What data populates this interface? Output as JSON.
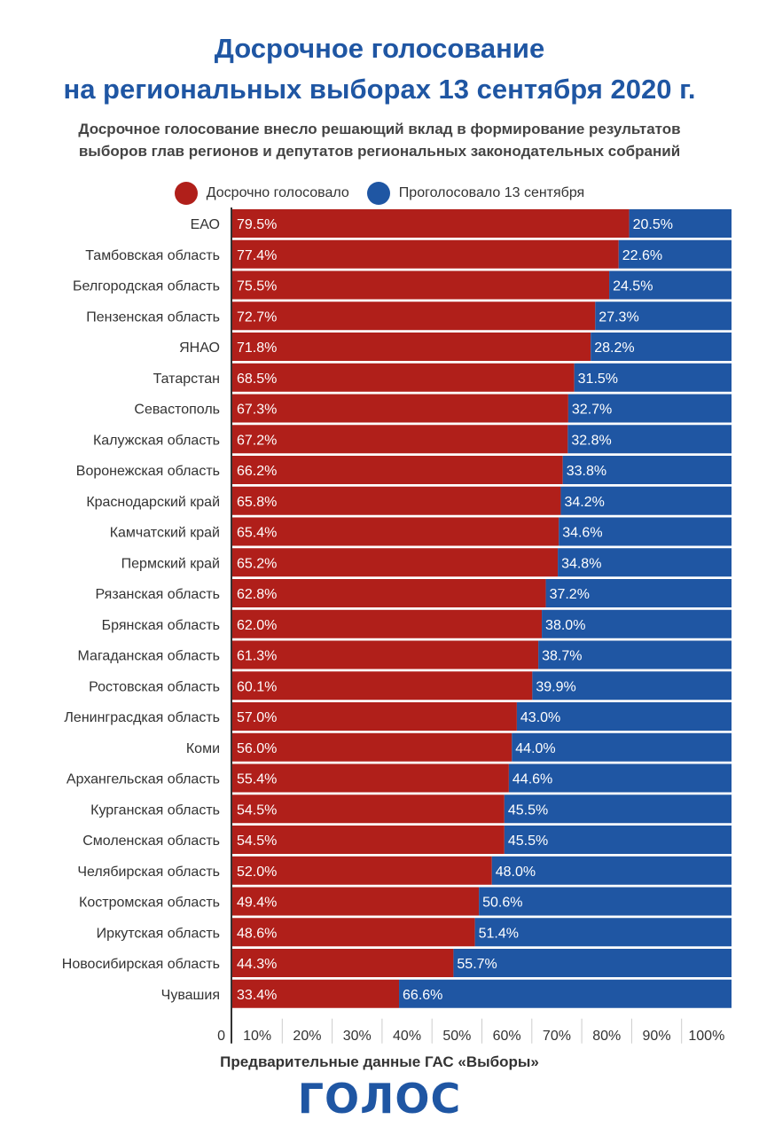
{
  "header": {
    "title_line1": "Досрочное голосование",
    "title_line2": "на региональных выборах 13 сентября 2020 г.",
    "subtitle_line1": "Досрочное голосование внесло решающий вклад в формирование результатов",
    "subtitle_line2": "выборов глав регионов и депутатов региональных законодательных собраний"
  },
  "legend": [
    {
      "label": "Досрочно голосовало",
      "color": "#b01f1a"
    },
    {
      "label": "Проголосовало 13 сентября",
      "color": "#1f56a3"
    }
  ],
  "chart_data": {
    "type": "bar",
    "orientation": "horizontal",
    "stacked": true,
    "categories": [
      "ЕАО",
      "Тамбовская область",
      "Белгородская область",
      "Пензенская область",
      "ЯНАО",
      "Татарстан",
      "Севастополь",
      "Калужская область",
      "Воронежская область",
      "Краснодарский край",
      "Камчатский край",
      "Пермский край",
      "Рязанская область",
      "Брянская область",
      "Магаданская область",
      "Ростовская область",
      "Ленинграсдкая область",
      "Коми",
      "Архангельская область",
      "Курганская область",
      "Смоленская область",
      "Челябирская область",
      "Костромская область",
      "Иркутская область",
      "Новосибирская область",
      "Чувашия"
    ],
    "series": [
      {
        "name": "Досрочно голосовало",
        "color": "#b01f1a",
        "values": [
          79.5,
          77.4,
          75.5,
          72.7,
          71.8,
          68.5,
          67.3,
          67.2,
          66.2,
          65.8,
          65.4,
          65.2,
          62.8,
          62.0,
          61.3,
          60.1,
          57.0,
          56.0,
          55.4,
          54.5,
          54.5,
          52.0,
          49.4,
          48.6,
          44.3,
          33.4
        ],
        "labels": [
          "79.5%",
          "77.4%",
          "75.5%",
          "72.7%",
          "71.8%",
          "68.5%",
          "67.3%",
          "67.2%",
          "66.2%",
          "65.8%",
          "65.4%",
          "65.2%",
          "62.8%",
          "62.0%",
          "61.3%",
          "60.1%",
          "57.0%",
          "56.0%",
          "55.4%",
          "54.5%",
          "54.5%",
          "52.0%",
          "49.4%",
          "48.6%",
          "44.3%",
          "33.4%"
        ]
      },
      {
        "name": "Проголосовало 13 сентября",
        "color": "#1f56a3",
        "values": [
          20.5,
          22.6,
          24.5,
          27.3,
          28.2,
          31.5,
          32.7,
          32.8,
          33.8,
          34.2,
          34.6,
          34.8,
          37.2,
          38.0,
          38.7,
          39.9,
          43.0,
          44.0,
          44.6,
          45.5,
          45.5,
          48.0,
          50.6,
          51.4,
          55.7,
          66.6
        ],
        "labels": [
          "20.5%",
          "22.6%",
          "24.5%",
          "27.3%",
          "28.2%",
          "31.5%",
          "32.7%",
          "32.8%",
          "33.8%",
          "34.2%",
          "34.6%",
          "34.8%",
          "37.2%",
          "38.0%",
          "38.7%",
          "39.9%",
          "43.0%",
          "44.0%",
          "44.6%",
          "45.5%",
          "45.5%",
          "48.0%",
          "50.6%",
          "51.4%",
          "55.7%",
          "66.6%"
        ]
      }
    ],
    "xlim": [
      0,
      100
    ],
    "xticks": [
      "0",
      "10%",
      "20%",
      "30%",
      "40%",
      "50%",
      "60%",
      "70%",
      "80%",
      "90%",
      "100%"
    ],
    "grid": false,
    "legend_position": "top-center"
  },
  "footer": {
    "source": "Предварительные данные ГАС «Выборы»",
    "logo": "ГОЛОС"
  }
}
